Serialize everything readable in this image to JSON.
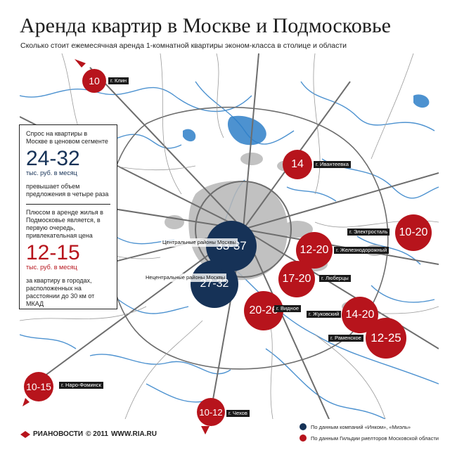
{
  "title": "Аренда квартир в Москве и Подмосковье",
  "subtitle": "Сколько стоит ежемесячная аренда 1-комнатной квартиры эконом-класса в столице и области",
  "infobox": {
    "p1": "Спрос на квартиры в Москве в ценовом сегменте",
    "range1": "24-32",
    "unit1": "тыс. руб. в месяц",
    "p2": "превышает объем предложения в четыре раза",
    "p3": "Плюсом в аренде жилья в Подмосковье является, в первую очередь, привлекательная цена",
    "range2": "12-15",
    "unit2": "тыс. руб. в месяц",
    "p4": "за квартиру в городах, расположенных на расстоянии до 30 км от МКАД"
  },
  "moscow": {
    "central_value": "33-37",
    "central_label": "Центральные районы Москвы",
    "noncentral_value": "27-32",
    "noncentral_label": "Нецентральные районы Москвы"
  },
  "cities": {
    "klin": {
      "value": "10",
      "label": "г. Клин"
    },
    "ivanteevka": {
      "value": "14",
      "label": "г. Ивантеевка"
    },
    "elektrostal": {
      "value": "10-20",
      "label": "г. Электросталь"
    },
    "zheleznodorozhny": {
      "value": "12-20",
      "label": "г. Железнодорожный"
    },
    "lyubertsy": {
      "value": "17-20",
      "label": "г. Люберцы"
    },
    "vidnoe": {
      "value": "20-26",
      "label": "г. Видное"
    },
    "zhukovsky": {
      "value": "14-20",
      "label": "г. Жуковский"
    },
    "ramenskoe": {
      "value": "12-25",
      "label": "г. Раменское"
    },
    "naro_fominsk": {
      "value": "10-15",
      "label": "г. Наро-Фоминск"
    },
    "chekhov": {
      "value": "10-12",
      "label": "г. Чехов"
    }
  },
  "footer": {
    "logo": "РИАНОВОСТИ",
    "copyright": "© 2011",
    "site": "WWW.RIA.RU"
  },
  "legend": [
    {
      "color": "#163257",
      "label": "По данным компаний «Инком», «Миэль»"
    },
    {
      "color": "#b7141c",
      "label": "По данным Гильдии риелторов Московской области"
    }
  ]
}
